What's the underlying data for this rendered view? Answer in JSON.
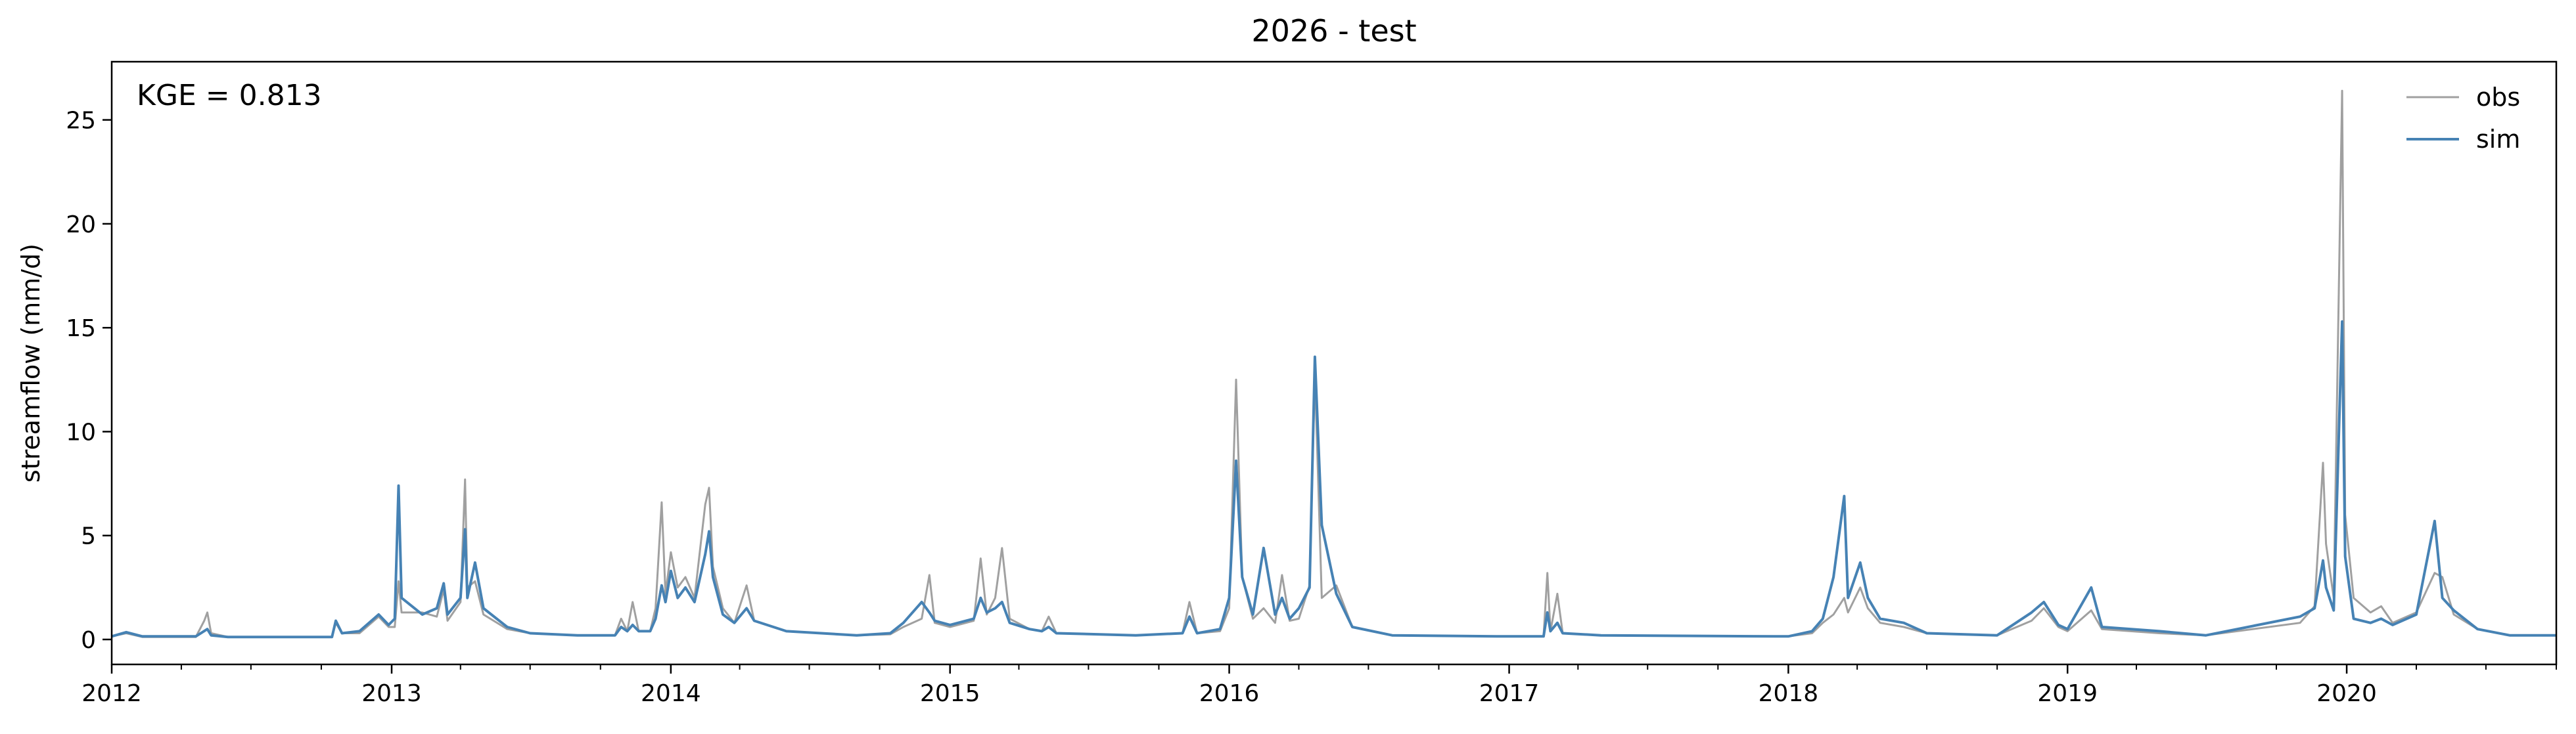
{
  "chart_data": {
    "type": "line",
    "title": "2026 - test",
    "xlabel": "",
    "ylabel": "streamflow (mm/d)",
    "annotation": "KGE = 0.813",
    "legend_placement": "top-right",
    "grid": false,
    "xlim": [
      "2012-01-01",
      "2020-10-01"
    ],
    "ylim": [
      -1.2,
      27.8
    ],
    "x_major_ticks": [
      "2012",
      "2013",
      "2014",
      "2015",
      "2016",
      "2017",
      "2018",
      "2019",
      "2020"
    ],
    "y_ticks": [
      0,
      5,
      10,
      15,
      20,
      25
    ],
    "series": [
      {
        "name": "obs",
        "color": "#a0a0a0",
        "points": [
          [
            "2012-01-01",
            0.15
          ],
          [
            "2012-01-20",
            0.3
          ],
          [
            "2012-02-10",
            0.12
          ],
          [
            "2012-04-20",
            0.12
          ],
          [
            "2012-05-01",
            0.9
          ],
          [
            "2012-05-05",
            1.3
          ],
          [
            "2012-05-10",
            0.3
          ],
          [
            "2012-06-01",
            0.12
          ],
          [
            "2012-10-15",
            0.12
          ],
          [
            "2012-10-20",
            0.8
          ],
          [
            "2012-10-28",
            0.3
          ],
          [
            "2012-11-20",
            0.3
          ],
          [
            "2012-12-15",
            1.1
          ],
          [
            "2012-12-28",
            0.6
          ],
          [
            "2013-01-05",
            0.6
          ],
          [
            "2013-01-10",
            2.8
          ],
          [
            "2013-01-14",
            1.3
          ],
          [
            "2013-02-10",
            1.3
          ],
          [
            "2013-03-01",
            1.1
          ],
          [
            "2013-03-10",
            2.4
          ],
          [
            "2013-03-15",
            0.9
          ],
          [
            "2013-04-01",
            1.8
          ],
          [
            "2013-04-07",
            7.7
          ],
          [
            "2013-04-10",
            2.5
          ],
          [
            "2013-04-20",
            2.8
          ],
          [
            "2013-05-01",
            1.2
          ],
          [
            "2013-06-01",
            0.5
          ],
          [
            "2013-07-01",
            0.3
          ],
          [
            "2013-09-01",
            0.2
          ],
          [
            "2013-10-20",
            0.2
          ],
          [
            "2013-10-28",
            1.0
          ],
          [
            "2013-11-05",
            0.4
          ],
          [
            "2013-11-12",
            1.8
          ],
          [
            "2013-11-20",
            0.4
          ],
          [
            "2013-12-05",
            0.4
          ],
          [
            "2013-12-12",
            1.5
          ],
          [
            "2013-12-20",
            6.6
          ],
          [
            "2013-12-25",
            2.2
          ],
          [
            "2014-01-01",
            4.2
          ],
          [
            "2014-01-10",
            2.5
          ],
          [
            "2014-01-20",
            3.0
          ],
          [
            "2014-02-01",
            2.0
          ],
          [
            "2014-02-15",
            6.5
          ],
          [
            "2014-02-20",
            7.3
          ],
          [
            "2014-02-25",
            3.5
          ],
          [
            "2014-03-10",
            1.5
          ],
          [
            "2014-03-25",
            0.8
          ],
          [
            "2014-04-10",
            2.6
          ],
          [
            "2014-04-20",
            0.9
          ],
          [
            "2014-06-01",
            0.4
          ],
          [
            "2014-09-01",
            0.2
          ],
          [
            "2014-10-15",
            0.25
          ],
          [
            "2014-11-01",
            0.6
          ],
          [
            "2014-11-25",
            1.0
          ],
          [
            "2014-12-05",
            3.1
          ],
          [
            "2014-12-12",
            0.8
          ],
          [
            "2015-01-01",
            0.6
          ],
          [
            "2015-02-01",
            0.9
          ],
          [
            "2015-02-10",
            3.9
          ],
          [
            "2015-02-18",
            1.2
          ],
          [
            "2015-03-01",
            2.0
          ],
          [
            "2015-03-10",
            4.4
          ],
          [
            "2015-03-20",
            1.0
          ],
          [
            "2015-04-15",
            0.5
          ],
          [
            "2015-05-01",
            0.4
          ],
          [
            "2015-05-10",
            1.1
          ],
          [
            "2015-05-20",
            0.3
          ],
          [
            "2015-09-01",
            0.2
          ],
          [
            "2015-11-01",
            0.3
          ],
          [
            "2015-11-10",
            1.8
          ],
          [
            "2015-11-20",
            0.3
          ],
          [
            "2015-12-20",
            0.4
          ],
          [
            "2016-01-01",
            1.5
          ],
          [
            "2016-01-10",
            12.5
          ],
          [
            "2016-01-18",
            3.0
          ],
          [
            "2016-02-01",
            1.0
          ],
          [
            "2016-02-15",
            1.5
          ],
          [
            "2016-03-01",
            0.8
          ],
          [
            "2016-03-10",
            3.1
          ],
          [
            "2016-03-20",
            0.9
          ],
          [
            "2016-04-01",
            1.0
          ],
          [
            "2016-04-15",
            2.6
          ],
          [
            "2016-04-22",
            12.8
          ],
          [
            "2016-05-01",
            2.0
          ],
          [
            "2016-05-20",
            2.6
          ],
          [
            "2016-06-10",
            0.6
          ],
          [
            "2016-08-01",
            0.2
          ],
          [
            "2016-12-15",
            0.15
          ],
          [
            "2017-01-01",
            0.15
          ],
          [
            "2017-02-15",
            0.15
          ],
          [
            "2017-02-20",
            3.2
          ],
          [
            "2017-02-24",
            0.4
          ],
          [
            "2017-03-05",
            2.2
          ],
          [
            "2017-03-12",
            0.3
          ],
          [
            "2017-05-01",
            0.2
          ],
          [
            "2017-12-15",
            0.15
          ],
          [
            "2018-01-01",
            0.15
          ],
          [
            "2018-02-01",
            0.3
          ],
          [
            "2018-02-15",
            0.8
          ],
          [
            "2018-03-01",
            1.2
          ],
          [
            "2018-03-15",
            2.0
          ],
          [
            "2018-03-20",
            1.3
          ],
          [
            "2018-04-05",
            2.5
          ],
          [
            "2018-04-15",
            1.5
          ],
          [
            "2018-05-01",
            0.8
          ],
          [
            "2018-06-01",
            0.6
          ],
          [
            "2018-07-01",
            0.3
          ],
          [
            "2018-10-01",
            0.2
          ],
          [
            "2018-11-15",
            0.9
          ],
          [
            "2018-12-01",
            1.5
          ],
          [
            "2018-12-20",
            0.6
          ],
          [
            "2019-01-01",
            0.4
          ],
          [
            "2019-02-01",
            1.4
          ],
          [
            "2019-02-15",
            0.5
          ],
          [
            "2019-05-01",
            0.3
          ],
          [
            "2019-07-01",
            0.2
          ],
          [
            "2019-11-01",
            0.8
          ],
          [
            "2019-11-20",
            1.6
          ],
          [
            "2019-12-01",
            8.5
          ],
          [
            "2019-12-05",
            4.6
          ],
          [
            "2019-12-15",
            2.0
          ],
          [
            "2019-12-26",
            26.4
          ],
          [
            "2019-12-30",
            6.0
          ],
          [
            "2020-01-10",
            2.0
          ],
          [
            "2020-02-01",
            1.3
          ],
          [
            "2020-02-15",
            1.6
          ],
          [
            "2020-03-01",
            0.8
          ],
          [
            "2020-04-01",
            1.3
          ],
          [
            "2020-04-25",
            3.2
          ],
          [
            "2020-05-05",
            3.0
          ],
          [
            "2020-05-20",
            1.2
          ],
          [
            "2020-06-20",
            0.5
          ],
          [
            "2020-08-01",
            0.2
          ],
          [
            "2020-10-01",
            0.2
          ]
        ]
      },
      {
        "name": "sim",
        "color": "#4682b4",
        "points": [
          [
            "2012-01-01",
            0.15
          ],
          [
            "2012-01-20",
            0.35
          ],
          [
            "2012-02-10",
            0.15
          ],
          [
            "2012-04-20",
            0.15
          ],
          [
            "2012-05-05",
            0.5
          ],
          [
            "2012-05-10",
            0.2
          ],
          [
            "2012-06-01",
            0.12
          ],
          [
            "2012-10-15",
            0.12
          ],
          [
            "2012-10-20",
            0.9
          ],
          [
            "2012-10-28",
            0.3
          ],
          [
            "2012-11-20",
            0.4
          ],
          [
            "2012-12-15",
            1.2
          ],
          [
            "2012-12-28",
            0.7
          ],
          [
            "2013-01-05",
            1.0
          ],
          [
            "2013-01-10",
            7.4
          ],
          [
            "2013-01-14",
            2.0
          ],
          [
            "2013-02-10",
            1.2
          ],
          [
            "2013-03-01",
            1.5
          ],
          [
            "2013-03-10",
            2.7
          ],
          [
            "2013-03-15",
            1.2
          ],
          [
            "2013-04-01",
            2.0
          ],
          [
            "2013-04-07",
            5.3
          ],
          [
            "2013-04-10",
            2.0
          ],
          [
            "2013-04-20",
            3.7
          ],
          [
            "2013-05-01",
            1.5
          ],
          [
            "2013-06-01",
            0.6
          ],
          [
            "2013-07-01",
            0.3
          ],
          [
            "2013-09-01",
            0.2
          ],
          [
            "2013-10-20",
            0.2
          ],
          [
            "2013-10-28",
            0.6
          ],
          [
            "2013-11-05",
            0.4
          ],
          [
            "2013-11-12",
            0.7
          ],
          [
            "2013-11-20",
            0.4
          ],
          [
            "2013-12-05",
            0.4
          ],
          [
            "2013-12-12",
            1.0
          ],
          [
            "2013-12-20",
            2.6
          ],
          [
            "2013-12-25",
            1.8
          ],
          [
            "2014-01-01",
            3.3
          ],
          [
            "2014-01-10",
            2.0
          ],
          [
            "2014-01-20",
            2.5
          ],
          [
            "2014-02-01",
            1.8
          ],
          [
            "2014-02-15",
            4.1
          ],
          [
            "2014-02-20",
            5.2
          ],
          [
            "2014-02-25",
            3.0
          ],
          [
            "2014-03-10",
            1.2
          ],
          [
            "2014-03-25",
            0.8
          ],
          [
            "2014-04-10",
            1.5
          ],
          [
            "2014-04-20",
            0.9
          ],
          [
            "2014-06-01",
            0.4
          ],
          [
            "2014-09-01",
            0.2
          ],
          [
            "2014-10-15",
            0.3
          ],
          [
            "2014-11-01",
            0.8
          ],
          [
            "2014-11-25",
            1.8
          ],
          [
            "2014-12-05",
            1.3
          ],
          [
            "2014-12-12",
            0.9
          ],
          [
            "2015-01-01",
            0.7
          ],
          [
            "2015-02-01",
            1.0
          ],
          [
            "2015-02-10",
            2.0
          ],
          [
            "2015-02-18",
            1.3
          ],
          [
            "2015-03-01",
            1.5
          ],
          [
            "2015-03-10",
            1.8
          ],
          [
            "2015-03-20",
            0.8
          ],
          [
            "2015-04-15",
            0.5
          ],
          [
            "2015-05-01",
            0.4
          ],
          [
            "2015-05-10",
            0.6
          ],
          [
            "2015-05-20",
            0.3
          ],
          [
            "2015-09-01",
            0.2
          ],
          [
            "2015-11-01",
            0.3
          ],
          [
            "2015-11-10",
            1.1
          ],
          [
            "2015-11-20",
            0.3
          ],
          [
            "2015-12-20",
            0.5
          ],
          [
            "2016-01-01",
            2.0
          ],
          [
            "2016-01-10",
            8.6
          ],
          [
            "2016-01-18",
            3.0
          ],
          [
            "2016-02-01",
            1.2
          ],
          [
            "2016-02-15",
            4.4
          ],
          [
            "2016-03-01",
            1.2
          ],
          [
            "2016-03-10",
            2.0
          ],
          [
            "2016-03-20",
            1.0
          ],
          [
            "2016-04-01",
            1.5
          ],
          [
            "2016-04-15",
            2.5
          ],
          [
            "2016-04-22",
            13.6
          ],
          [
            "2016-05-01",
            5.5
          ],
          [
            "2016-05-20",
            2.2
          ],
          [
            "2016-06-10",
            0.6
          ],
          [
            "2016-08-01",
            0.2
          ],
          [
            "2016-12-15",
            0.15
          ],
          [
            "2017-01-01",
            0.15
          ],
          [
            "2017-02-15",
            0.15
          ],
          [
            "2017-02-20",
            1.3
          ],
          [
            "2017-02-24",
            0.4
          ],
          [
            "2017-03-05",
            0.8
          ],
          [
            "2017-03-12",
            0.3
          ],
          [
            "2017-05-01",
            0.2
          ],
          [
            "2017-12-15",
            0.15
          ],
          [
            "2018-01-01",
            0.15
          ],
          [
            "2018-02-01",
            0.4
          ],
          [
            "2018-02-15",
            1.0
          ],
          [
            "2018-03-01",
            3.0
          ],
          [
            "2018-03-15",
            6.9
          ],
          [
            "2018-03-20",
            2.0
          ],
          [
            "2018-04-05",
            3.7
          ],
          [
            "2018-04-15",
            2.0
          ],
          [
            "2018-05-01",
            1.0
          ],
          [
            "2018-06-01",
            0.8
          ],
          [
            "2018-07-01",
            0.3
          ],
          [
            "2018-10-01",
            0.2
          ],
          [
            "2018-11-15",
            1.3
          ],
          [
            "2018-12-01",
            1.8
          ],
          [
            "2018-12-20",
            0.7
          ],
          [
            "2019-01-01",
            0.5
          ],
          [
            "2019-02-01",
            2.5
          ],
          [
            "2019-02-15",
            0.6
          ],
          [
            "2019-05-01",
            0.4
          ],
          [
            "2019-07-01",
            0.2
          ],
          [
            "2019-11-01",
            1.1
          ],
          [
            "2019-11-20",
            1.5
          ],
          [
            "2019-12-01",
            3.8
          ],
          [
            "2019-12-05",
            2.5
          ],
          [
            "2019-12-15",
            1.4
          ],
          [
            "2019-12-26",
            15.3
          ],
          [
            "2019-12-30",
            4.0
          ],
          [
            "2020-01-10",
            1.0
          ],
          [
            "2020-02-01",
            0.8
          ],
          [
            "2020-02-15",
            1.0
          ],
          [
            "2020-03-01",
            0.7
          ],
          [
            "2020-04-01",
            1.2
          ],
          [
            "2020-04-25",
            5.7
          ],
          [
            "2020-05-05",
            2.0
          ],
          [
            "2020-05-20",
            1.4
          ],
          [
            "2020-06-20",
            0.5
          ],
          [
            "2020-08-01",
            0.2
          ],
          [
            "2020-10-01",
            0.2
          ]
        ]
      }
    ]
  }
}
